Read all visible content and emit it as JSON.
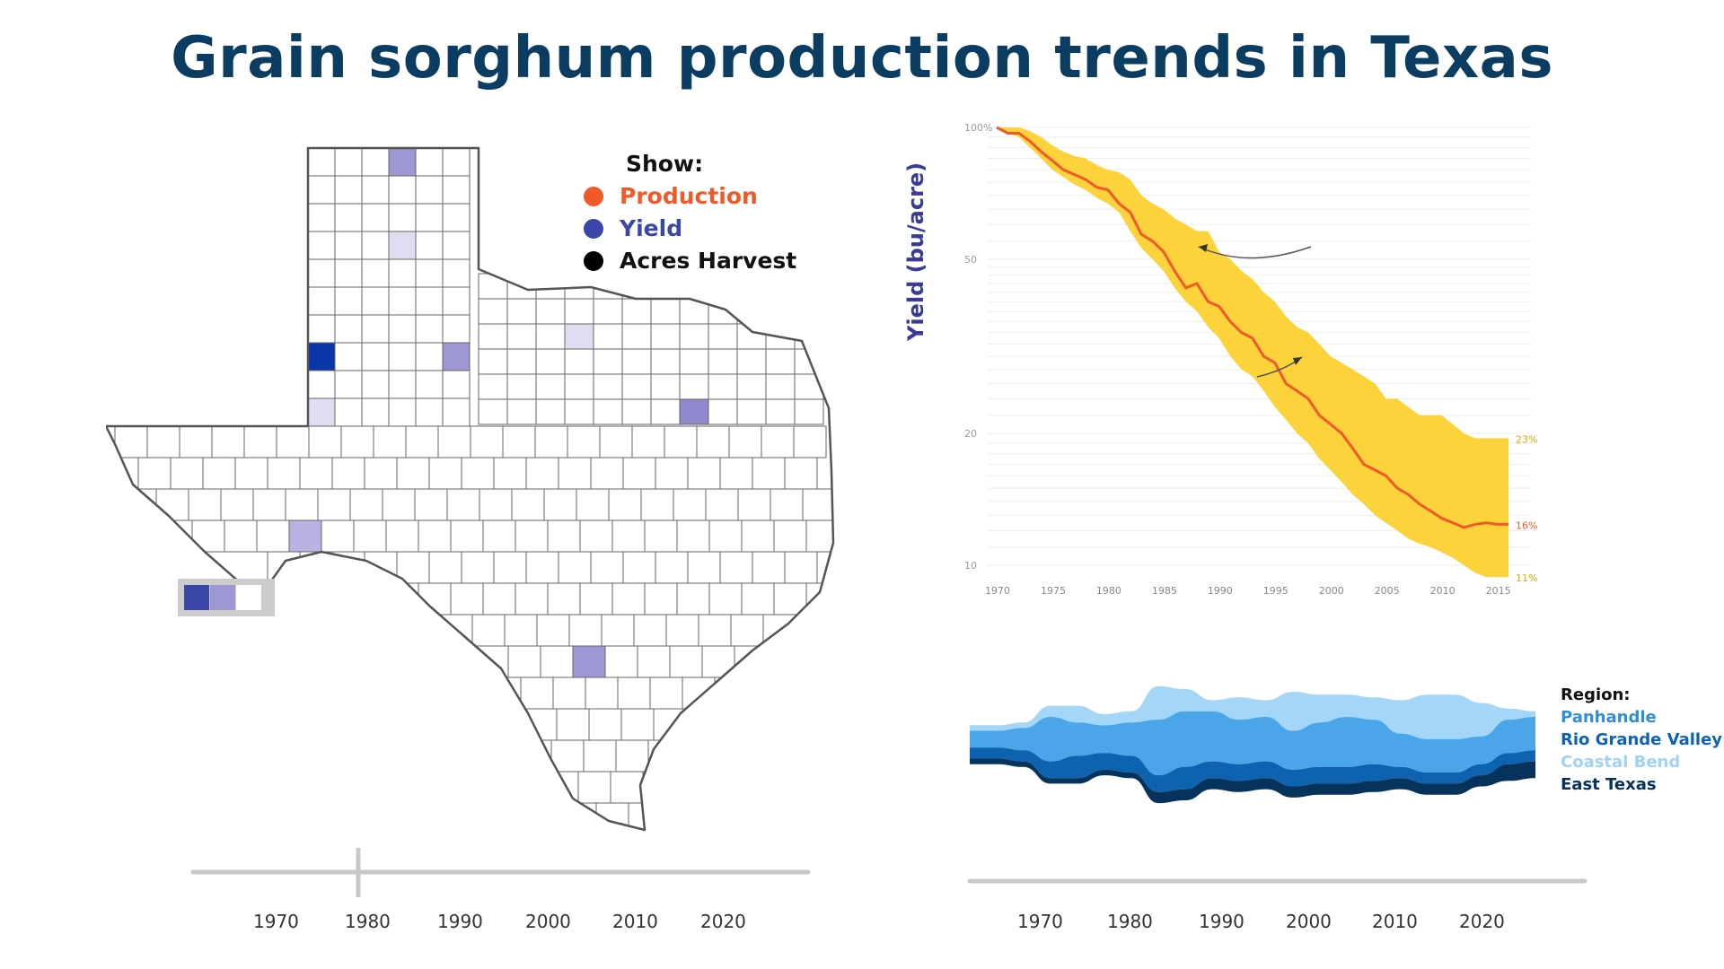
{
  "title": "Grain sorghum production trends in Texas",
  "show_legend": {
    "header": "Show:",
    "items": [
      {
        "label": "Production",
        "color": "#f05a28"
      },
      {
        "label": "Yield",
        "color": "#3a46a8"
      },
      {
        "label": "Acres Harvest",
        "color": "#000000"
      }
    ]
  },
  "map_scale_colors": [
    "#3a46a8",
    "#9d98d4",
    "#ffffff",
    "#cccccc"
  ],
  "left_timeline": {
    "years": [
      "1970",
      "1980",
      "1990",
      "2000",
      "2010",
      "2020"
    ],
    "selected_year": "1980"
  },
  "chart_data": [
    {
      "type": "line",
      "ylabel": "Yield (bu/acre)",
      "yscale": "log",
      "yticks": [
        "100%",
        "50",
        "20",
        "10"
      ],
      "ytick_values": [
        100,
        50,
        20,
        10
      ],
      "ylim": [
        10,
        100
      ],
      "x": [
        1970,
        1971,
        1972,
        1973,
        1974,
        1975,
        1976,
        1977,
        1978,
        1979,
        1980,
        1981,
        1982,
        1983,
        1984,
        1985,
        1986,
        1987,
        1988,
        1989,
        1990,
        1991,
        1992,
        1993,
        1994,
        1995,
        1996,
        1997,
        1998,
        1999,
        2000,
        2001,
        2002,
        2003,
        2004,
        2005,
        2006,
        2007,
        2008,
        2009,
        2010,
        2011,
        2012,
        2013,
        2014,
        2015,
        2016
      ],
      "xticks": [
        "1970",
        "1975",
        "1980",
        "1985",
        "1990",
        "1995",
        "2000",
        "2005",
        "2010",
        "2015"
      ],
      "xtick_values": [
        1970,
        1975,
        1980,
        1985,
        1990,
        1995,
        2000,
        2005,
        2010,
        2015
      ],
      "series": [
        {
          "role": "median",
          "color": "#f05a28",
          "values": [
            100,
            97,
            97,
            93,
            88,
            84,
            80,
            78,
            76,
            73,
            72,
            67,
            64,
            57,
            55,
            52,
            47,
            43,
            44,
            40,
            39,
            36,
            34,
            33,
            30,
            29,
            26,
            25,
            24,
            22,
            21,
            20,
            18.5,
            17,
            16.5,
            16,
            15,
            14.5,
            13.8,
            13.3,
            12.8,
            12.5,
            12.2,
            12.4,
            12.5,
            12.4,
            12.4
          ]
        },
        {
          "role": "upper-bound",
          "color": "#fdd33b",
          "values": [
            100,
            100,
            100,
            98,
            95,
            91,
            88,
            86,
            85,
            82,
            80,
            79,
            76,
            70,
            67,
            65,
            62,
            60,
            58,
            58,
            52,
            50,
            47,
            45,
            42,
            40,
            37,
            35,
            34,
            32,
            30,
            29,
            28,
            27,
            26,
            24,
            24,
            23,
            22,
            22,
            22,
            21,
            20,
            19.5,
            19.5,
            19.5,
            19.5
          ]
        },
        {
          "role": "lower-bound",
          "color": "#fdd33b",
          "values": [
            100,
            97,
            95,
            90,
            85,
            80,
            77,
            74,
            72,
            69,
            67,
            64,
            58,
            53,
            50,
            47,
            43,
            40,
            38,
            35,
            33,
            30,
            28,
            27,
            25,
            23,
            21.5,
            20,
            19,
            17.5,
            16.5,
            15.5,
            14.5,
            13.8,
            13,
            12.5,
            12,
            11.5,
            11.2,
            11,
            10.7,
            10.4,
            10,
            9.6,
            9.4,
            9.4,
            9.4
          ]
        }
      ],
      "end_labels": [
        {
          "text": "23%",
          "color": "#e0a800"
        },
        {
          "text": "16%",
          "color": "#f05a28"
        },
        {
          "text": "11%",
          "color": "#e0a800"
        }
      ]
    },
    {
      "type": "area",
      "stacked": "streamgraph",
      "legend_title": "Region:",
      "x": [
        1963,
        1966,
        1969,
        1972,
        1975,
        1978,
        1981,
        1983,
        1986,
        1989,
        1992,
        1995,
        1998,
        2001,
        2004,
        2007,
        2010,
        2013,
        2016,
        2019,
        2022,
        2025
      ],
      "series": [
        {
          "name": "Panhandle",
          "color": "#4aa6e8",
          "values": [
            3,
            3,
            4,
            8,
            6,
            5,
            6,
            10,
            10,
            9,
            8,
            8,
            7,
            8,
            9,
            8,
            6,
            6,
            6,
            5,
            6,
            6
          ]
        },
        {
          "name": "Rio Grande Valley",
          "color": "#0d63b0",
          "values": [
            2,
            2,
            2,
            3,
            4,
            3,
            3,
            3,
            4,
            3,
            3,
            3,
            3,
            3,
            3,
            3,
            2,
            2,
            2,
            2,
            2,
            2
          ]
        },
        {
          "name": "Coastal Bend",
          "color": "#a4d6f7",
          "values": [
            1,
            1,
            1,
            2,
            3,
            2,
            2,
            6,
            4,
            2,
            4,
            3,
            7,
            5,
            4,
            4,
            6,
            8,
            8,
            6,
            2,
            1
          ]
        },
        {
          "name": "East Texas",
          "color": "#05335c",
          "values": [
            1,
            1,
            1,
            1,
            1,
            1,
            1,
            2,
            2,
            2,
            2,
            2,
            2,
            2,
            2,
            2,
            2,
            2,
            2,
            2,
            3,
            3
          ]
        }
      ]
    }
  ],
  "right_timeline": {
    "years": [
      "1970",
      "1980",
      "1990",
      "2000",
      "2010",
      "2020"
    ]
  }
}
